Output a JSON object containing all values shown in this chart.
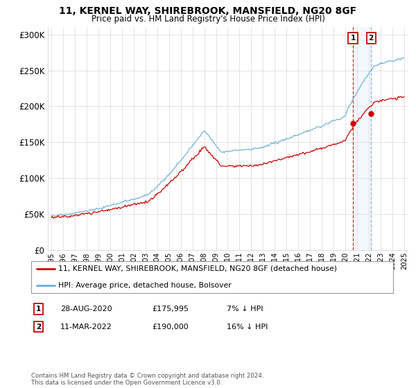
{
  "title": "11, KERNEL WAY, SHIREBROOK, MANSFIELD, NG20 8GF",
  "subtitle": "Price paid vs. HM Land Registry's House Price Index (HPI)",
  "legend_line1": "11, KERNEL WAY, SHIREBROOK, MANSFIELD, NG20 8GF (detached house)",
  "legend_line2": "HPI: Average price, detached house, Bolsover",
  "annotation1_label": "1",
  "annotation1_date": "28-AUG-2020",
  "annotation1_price": "£175,995",
  "annotation1_hpi": "7% ↓ HPI",
  "annotation2_label": "2",
  "annotation2_date": "11-MAR-2022",
  "annotation2_price": "£190,000",
  "annotation2_hpi": "16% ↓ HPI",
  "footer": "Contains HM Land Registry data © Crown copyright and database right 2024.\nThis data is licensed under the Open Government Licence v3.0.",
  "hpi_color": "#6baed6",
  "price_color": "#cc0000",
  "marker_color": "#cc0000",
  "vline1_color": "#cc0000",
  "vline2_color": "#6baed6",
  "shaded_color": "#d0e4f7",
  "annotation_box_color": "#cc0000",
  "background_color": "#ffffff",
  "ylim": [
    0,
    310000
  ],
  "yticks": [
    0,
    50000,
    100000,
    150000,
    200000,
    250000,
    300000
  ],
  "ytick_labels": [
    "£0",
    "£50K",
    "£100K",
    "£150K",
    "£200K",
    "£250K",
    "£300K"
  ],
  "t1": 2020.64,
  "t2": 2022.18,
  "p1": 175995,
  "p2": 190000,
  "xmin": 1994.7,
  "xmax": 2025.3
}
